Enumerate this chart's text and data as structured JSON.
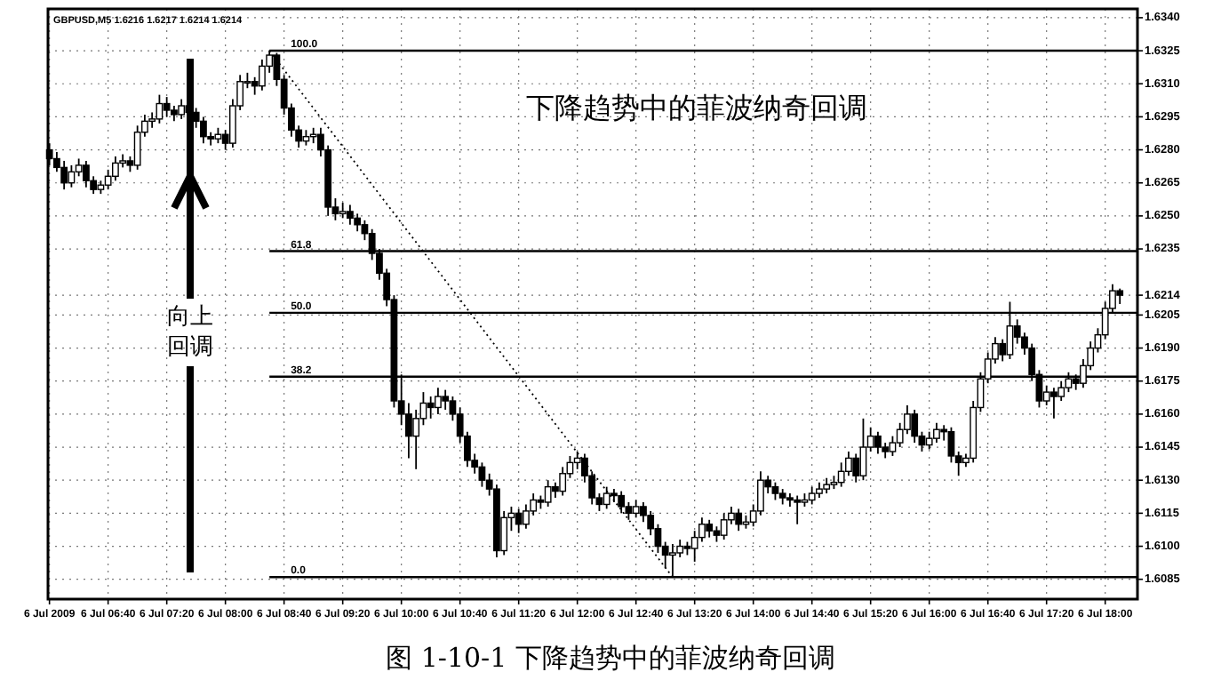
{
  "chart_data": {
    "type": "candlestick",
    "title": "图 1-10-1  下降趋势中的菲波纳奇回调",
    "subtitle": "GBPUSD,M5  1.6216 1.6217 1.6214 1.6214",
    "annotations": [
      "下降趋势中的菲波纳奇回调",
      "向上回调"
    ],
    "color": "#000000",
    "grid": true,
    "xlim": [
      "2009-07-06T05:59",
      "2009-07-06T18:22"
    ],
    "ylim": [
      1.6076,
      1.6344
    ],
    "xticks": [
      {
        "value": "2009-07-06T06:00",
        "label": "6 Jul 2009"
      },
      {
        "value": "2009-07-06T06:40",
        "label": "6 Jul 06:40"
      },
      {
        "value": "2009-07-06T07:20",
        "label": "6 Jul 07:20"
      },
      {
        "value": "2009-07-06T08:00",
        "label": "6 Jul 08:00"
      },
      {
        "value": "2009-07-06T08:40",
        "label": "6 Jul 08:40"
      },
      {
        "value": "2009-07-06T09:20",
        "label": "6 Jul 09:20"
      },
      {
        "value": "2009-07-06T10:00",
        "label": "6 Jul 10:00"
      },
      {
        "value": "2009-07-06T10:40",
        "label": "6 Jul 10:40"
      },
      {
        "value": "2009-07-06T11:20",
        "label": "6 Jul 11:20"
      },
      {
        "value": "2009-07-06T12:00",
        "label": "6 Jul 12:00"
      },
      {
        "value": "2009-07-06T12:40",
        "label": "6 Jul 12:40"
      },
      {
        "value": "2009-07-06T13:20",
        "label": "6 Jul 13:20"
      },
      {
        "value": "2009-07-06T14:00",
        "label": "6 Jul 14:00"
      },
      {
        "value": "2009-07-06T14:40",
        "label": "6 Jul 14:40"
      },
      {
        "value": "2009-07-06T15:20",
        "label": "6 Jul 15:20"
      },
      {
        "value": "2009-07-06T16:00",
        "label": "6 Jul 16:00"
      },
      {
        "value": "2009-07-06T16:40",
        "label": "6 Jul 16:40"
      },
      {
        "value": "2009-07-06T17:20",
        "label": "6 Jul 17:20"
      },
      {
        "value": "2009-07-06T18:00",
        "label": "6 Jul 18:00"
      }
    ],
    "yticks": [
      {
        "value": 1.634,
        "label": "1.6340"
      },
      1.6325,
      {
        "value": 1.631,
        "label": "1.6310"
      },
      1.6295,
      {
        "value": 1.628,
        "label": "1.6280"
      },
      1.6265,
      {
        "value": 1.625,
        "label": "1.6250"
      },
      1.6235,
      1.6214,
      1.6205,
      {
        "value": 1.619,
        "label": "1.6190"
      },
      1.6175,
      {
        "value": 1.616,
        "label": "1.6160"
      },
      1.6145,
      {
        "value": 1.613,
        "label": "1.6130"
      },
      1.6115,
      {
        "value": 1.61,
        "label": "1.6100"
      },
      1.6085
    ],
    "series": [
      {
        "type": "line",
        "x": [
          "2009-07-06T08:30",
          "2009-07-06T13:05"
        ],
        "values": [
          1.6325,
          1.6086
        ],
        "color": "#000000",
        "line_style": "dotted"
      },
      {
        "type": "line",
        "name": "100.0",
        "x": [
          "2009-07-06T08:30",
          "2009-07-06T18:22"
        ],
        "values": [
          1.6325,
          1.6325
        ],
        "color": "#000000",
        "line_style": "solid"
      },
      {
        "type": "line",
        "name": "61.8",
        "x": [
          "2009-07-06T08:30",
          "2009-07-06T18:22"
        ],
        "values": [
          1.6234,
          1.6234
        ],
        "color": "#000000",
        "line_style": "solid"
      },
      {
        "type": "line",
        "name": "50.0",
        "x": [
          "2009-07-06T08:30",
          "2009-07-06T18:22"
        ],
        "values": [
          1.6206,
          1.6206
        ],
        "color": "#000000",
        "line_style": "solid"
      },
      {
        "type": "line",
        "name": "38.2",
        "x": [
          "2009-07-06T08:30",
          "2009-07-06T18:22"
        ],
        "values": [
          1.6177,
          1.6177
        ],
        "color": "#000000",
        "line_style": "solid"
      },
      {
        "type": "line",
        "name": "0.0",
        "x": [
          "2009-07-06T08:30",
          "2009-07-06T18:22"
        ],
        "values": [
          1.6086,
          1.6086
        ],
        "color": "#000000",
        "line_style": "solid"
      }
    ],
    "x": [
      "2009-07-06T06:00",
      "2009-07-06T06:05",
      "2009-07-06T06:10",
      "2009-07-06T06:15",
      "2009-07-06T06:20",
      "2009-07-06T06:25",
      "2009-07-06T06:30",
      "2009-07-06T06:35",
      "2009-07-06T06:40",
      "2009-07-06T06:45",
      "2009-07-06T06:50",
      "2009-07-06T06:55",
      "2009-07-06T07:00",
      "2009-07-06T07:05",
      "2009-07-06T07:10",
      "2009-07-06T07:15",
      "2009-07-06T07:20",
      "2009-07-06T07:25",
      "2009-07-06T07:30",
      "2009-07-06T07:35",
      "2009-07-06T07:40",
      "2009-07-06T07:45",
      "2009-07-06T07:50",
      "2009-07-06T07:55",
      "2009-07-06T08:00",
      "2009-07-06T08:05",
      "2009-07-06T08:10",
      "2009-07-06T08:15",
      "2009-07-06T08:20",
      "2009-07-06T08:25",
      "2009-07-06T08:30",
      "2009-07-06T08:35",
      "2009-07-06T08:40",
      "2009-07-06T08:45",
      "2009-07-06T08:50",
      "2009-07-06T08:55",
      "2009-07-06T09:00",
      "2009-07-06T09:05",
      "2009-07-06T09:10",
      "2009-07-06T09:15",
      "2009-07-06T09:20",
      "2009-07-06T09:25",
      "2009-07-06T09:30",
      "2009-07-06T09:35",
      "2009-07-06T09:40",
      "2009-07-06T09:45",
      "2009-07-06T09:50",
      "2009-07-06T09:55",
      "2009-07-06T10:00",
      "2009-07-06T10:05",
      "2009-07-06T10:10",
      "2009-07-06T10:15",
      "2009-07-06T10:20",
      "2009-07-06T10:25",
      "2009-07-06T10:30",
      "2009-07-06T10:35",
      "2009-07-06T10:40",
      "2009-07-06T10:45",
      "2009-07-06T10:50",
      "2009-07-06T10:55",
      "2009-07-06T11:00",
      "2009-07-06T11:05",
      "2009-07-06T11:10",
      "2009-07-06T11:15",
      "2009-07-06T11:20",
      "2009-07-06T11:25",
      "2009-07-06T11:30",
      "2009-07-06T11:35",
      "2009-07-06T11:40",
      "2009-07-06T11:45",
      "2009-07-06T11:50",
      "2009-07-06T11:55",
      "2009-07-06T12:00",
      "2009-07-06T12:05",
      "2009-07-06T12:10",
      "2009-07-06T12:15",
      "2009-07-06T12:20",
      "2009-07-06T12:25",
      "2009-07-06T12:30",
      "2009-07-06T12:35",
      "2009-07-06T12:40",
      "2009-07-06T12:45",
      "2009-07-06T12:50",
      "2009-07-06T12:55",
      "2009-07-06T13:00",
      "2009-07-06T13:05",
      "2009-07-06T13:10",
      "2009-07-06T13:15",
      "2009-07-06T13:20",
      "2009-07-06T13:25",
      "2009-07-06T13:30",
      "2009-07-06T13:35",
      "2009-07-06T13:40",
      "2009-07-06T13:45",
      "2009-07-06T13:50",
      "2009-07-06T13:55",
      "2009-07-06T14:00",
      "2009-07-06T14:05",
      "2009-07-06T14:10",
      "2009-07-06T14:15",
      "2009-07-06T14:20",
      "2009-07-06T14:25",
      "2009-07-06T14:30",
      "2009-07-06T14:35",
      "2009-07-06T14:40",
      "2009-07-06T14:45",
      "2009-07-06T14:50",
      "2009-07-06T14:55",
      "2009-07-06T15:00",
      "2009-07-06T15:05",
      "2009-07-06T15:10",
      "2009-07-06T15:15",
      "2009-07-06T15:20",
      "2009-07-06T15:25",
      "2009-07-06T15:30",
      "2009-07-06T15:35",
      "2009-07-06T15:40",
      "2009-07-06T15:45",
      "2009-07-06T15:50",
      "2009-07-06T15:55",
      "2009-07-06T16:00",
      "2009-07-06T16:05",
      "2009-07-06T16:10",
      "2009-07-06T16:15",
      "2009-07-06T16:20",
      "2009-07-06T16:25",
      "2009-07-06T16:30",
      "2009-07-06T16:35",
      "2009-07-06T16:40",
      "2009-07-06T16:45",
      "2009-07-06T16:50",
      "2009-07-06T16:55",
      "2009-07-06T17:00",
      "2009-07-06T17:05",
      "2009-07-06T17:10",
      "2009-07-06T17:15",
      "2009-07-06T17:20",
      "2009-07-06T17:25",
      "2009-07-06T17:30",
      "2009-07-06T17:35",
      "2009-07-06T17:40",
      "2009-07-06T17:45",
      "2009-07-06T17:50",
      "2009-07-06T17:55",
      "2009-07-06T18:00",
      "2009-07-06T18:05",
      "2009-07-06T18:10"
    ],
    "ohlc": [
      [
        1.628,
        1.6283,
        1.6273,
        1.6276
      ],
      [
        1.6276,
        1.6279,
        1.627,
        1.6272
      ],
      [
        1.6272,
        1.6275,
        1.6262,
        1.6265
      ],
      [
        1.6265,
        1.6273,
        1.6263,
        1.627
      ],
      [
        1.627,
        1.6276,
        1.6268,
        1.6273
      ],
      [
        1.6273,
        1.6275,
        1.6263,
        1.6266
      ],
      [
        1.6266,
        1.6268,
        1.626,
        1.6262
      ],
      [
        1.6262,
        1.6266,
        1.626,
        1.6264
      ],
      [
        1.6264,
        1.6271,
        1.6262,
        1.6268
      ],
      [
        1.6268,
        1.6277,
        1.6266,
        1.6274
      ],
      [
        1.6274,
        1.6278,
        1.6272,
        1.6275
      ],
      [
        1.6275,
        1.6277,
        1.627,
        1.6273
      ],
      [
        1.6273,
        1.6291,
        1.6271,
        1.6288
      ],
      [
        1.6288,
        1.6296,
        1.6286,
        1.6293
      ],
      [
        1.6293,
        1.6297,
        1.629,
        1.6294
      ],
      [
        1.6294,
        1.6305,
        1.6292,
        1.6301
      ],
      [
        1.6301,
        1.6304,
        1.6295,
        1.6298
      ],
      [
        1.6298,
        1.63,
        1.6293,
        1.6296
      ],
      [
        1.6296,
        1.6303,
        1.6294,
        1.63
      ],
      [
        1.63,
        1.6302,
        1.6294,
        1.6297
      ],
      [
        1.6297,
        1.6299,
        1.629,
        1.6293
      ],
      [
        1.6293,
        1.6295,
        1.6283,
        1.6286
      ],
      [
        1.6286,
        1.6288,
        1.6282,
        1.6285
      ],
      [
        1.6285,
        1.629,
        1.6283,
        1.6287
      ],
      [
        1.6287,
        1.6289,
        1.628,
        1.6283
      ],
      [
        1.6283,
        1.6303,
        1.6281,
        1.63
      ],
      [
        1.63,
        1.6314,
        1.6298,
        1.6311
      ],
      [
        1.6311,
        1.6315,
        1.6308,
        1.6311
      ],
      [
        1.6311,
        1.6313,
        1.6305,
        1.6309
      ],
      [
        1.6309,
        1.6321,
        1.6307,
        1.6318
      ],
      [
        1.6318,
        1.6325,
        1.6315,
        1.6323
      ],
      [
        1.6323,
        1.6324,
        1.6309,
        1.6312
      ],
      [
        1.6312,
        1.6314,
        1.6296,
        1.6299
      ],
      [
        1.6299,
        1.6301,
        1.6286,
        1.6289
      ],
      [
        1.6289,
        1.6291,
        1.6281,
        1.6284
      ],
      [
        1.6284,
        1.6289,
        1.6282,
        1.6286
      ],
      [
        1.6286,
        1.629,
        1.6283,
        1.6287
      ],
      [
        1.6287,
        1.629,
        1.6277,
        1.628
      ],
      [
        1.628,
        1.6282,
        1.625,
        1.6254
      ],
      [
        1.6254,
        1.6258,
        1.6248,
        1.6251
      ],
      [
        1.6251,
        1.6256,
        1.6249,
        1.6252
      ],
      [
        1.6252,
        1.6255,
        1.6246,
        1.6249
      ],
      [
        1.6249,
        1.6251,
        1.6243,
        1.6246
      ],
      [
        1.6246,
        1.6248,
        1.6239,
        1.6242
      ],
      [
        1.6242,
        1.6244,
        1.623,
        1.6233
      ],
      [
        1.6233,
        1.6235,
        1.6221,
        1.6224
      ],
      [
        1.6224,
        1.6226,
        1.6209,
        1.6212
      ],
      [
        1.6212,
        1.6214,
        1.6163,
        1.6166
      ],
      [
        1.6166,
        1.6178,
        1.6155,
        1.616
      ],
      [
        1.616,
        1.6165,
        1.614,
        1.615
      ],
      [
        1.615,
        1.6162,
        1.6135,
        1.6158
      ],
      [
        1.6158,
        1.617,
        1.6155,
        1.6165
      ],
      [
        1.6165,
        1.6168,
        1.6158,
        1.6163
      ],
      [
        1.6163,
        1.6172,
        1.616,
        1.6168
      ],
      [
        1.6168,
        1.6171,
        1.6162,
        1.6166
      ],
      [
        1.6166,
        1.6168,
        1.6157,
        1.616
      ],
      [
        1.616,
        1.6163,
        1.6147,
        1.615
      ],
      [
        1.615,
        1.6152,
        1.6136,
        1.6139
      ],
      [
        1.6139,
        1.6142,
        1.6133,
        1.6136
      ],
      [
        1.6136,
        1.6138,
        1.6127,
        1.613
      ],
      [
        1.613,
        1.6133,
        1.6123,
        1.6126
      ],
      [
        1.6126,
        1.6128,
        1.6095,
        1.6098
      ],
      [
        1.6098,
        1.6116,
        1.6096,
        1.6113
      ],
      [
        1.6113,
        1.6118,
        1.6107,
        1.6115
      ],
      [
        1.6115,
        1.6117,
        1.6106,
        1.611
      ],
      [
        1.611,
        1.6119,
        1.6108,
        1.6116
      ],
      [
        1.6116,
        1.6124,
        1.6114,
        1.6121
      ],
      [
        1.6121,
        1.6123,
        1.6117,
        1.612
      ],
      [
        1.612,
        1.613,
        1.6118,
        1.6127
      ],
      [
        1.6127,
        1.6129,
        1.6122,
        1.6125
      ],
      [
        1.6125,
        1.6136,
        1.6123,
        1.6133
      ],
      [
        1.6133,
        1.6141,
        1.6131,
        1.6138
      ],
      [
        1.6138,
        1.6143,
        1.6135,
        1.614
      ],
      [
        1.614,
        1.6142,
        1.6129,
        1.6132
      ],
      [
        1.6132,
        1.6134,
        1.6119,
        1.6122
      ],
      [
        1.6122,
        1.6124,
        1.6116,
        1.6119
      ],
      [
        1.6119,
        1.6127,
        1.6117,
        1.6124
      ],
      [
        1.6124,
        1.6126,
        1.612,
        1.6123
      ],
      [
        1.6123,
        1.6125,
        1.6115,
        1.6118
      ],
      [
        1.6118,
        1.612,
        1.6112,
        1.6115
      ],
      [
        1.6115,
        1.6121,
        1.6113,
        1.6118
      ],
      [
        1.6118,
        1.612,
        1.6111,
        1.6114
      ],
      [
        1.6114,
        1.6116,
        1.6105,
        1.6108
      ],
      [
        1.6108,
        1.611,
        1.6097,
        1.61
      ],
      [
        1.61,
        1.6102,
        1.609,
        1.6096
      ],
      [
        1.6096,
        1.6101,
        1.6086,
        1.6097
      ],
      [
        1.6097,
        1.6103,
        1.6095,
        1.61
      ],
      [
        1.61,
        1.6102,
        1.6096,
        1.6099
      ],
      [
        1.6099,
        1.6107,
        1.6093,
        1.6104
      ],
      [
        1.6104,
        1.6113,
        1.6102,
        1.611
      ],
      [
        1.611,
        1.6112,
        1.6104,
        1.6107
      ],
      [
        1.6107,
        1.6109,
        1.6102,
        1.6105
      ],
      [
        1.6105,
        1.6115,
        1.6103,
        1.6112
      ],
      [
        1.6112,
        1.6118,
        1.611,
        1.6115
      ],
      [
        1.6115,
        1.6117,
        1.6107,
        1.611
      ],
      [
        1.611,
        1.6114,
        1.6108,
        1.6111
      ],
      [
        1.6111,
        1.6119,
        1.6109,
        1.6116
      ],
      [
        1.6116,
        1.6134,
        1.6114,
        1.613
      ],
      [
        1.613,
        1.6132,
        1.6124,
        1.6127
      ],
      [
        1.6127,
        1.6129,
        1.6121,
        1.6124
      ],
      [
        1.6124,
        1.6126,
        1.6119,
        1.6122
      ],
      [
        1.6122,
        1.6124,
        1.6118,
        1.6121
      ],
      [
        1.6121,
        1.6123,
        1.611,
        1.612
      ],
      [
        1.612,
        1.6124,
        1.6118,
        1.6121
      ],
      [
        1.6121,
        1.6127,
        1.6119,
        1.6124
      ],
      [
        1.6124,
        1.6129,
        1.6122,
        1.6126
      ],
      [
        1.6126,
        1.6131,
        1.6124,
        1.6128
      ],
      [
        1.6128,
        1.6132,
        1.6126,
        1.6129
      ],
      [
        1.6129,
        1.6138,
        1.6127,
        1.6134
      ],
      [
        1.6134,
        1.6143,
        1.6132,
        1.614
      ],
      [
        1.614,
        1.6142,
        1.6129,
        1.6132
      ],
      [
        1.6132,
        1.6158,
        1.613,
        1.6145
      ],
      [
        1.6145,
        1.6154,
        1.6143,
        1.615
      ],
      [
        1.615,
        1.6152,
        1.6142,
        1.6145
      ],
      [
        1.6145,
        1.6147,
        1.614,
        1.6143
      ],
      [
        1.6143,
        1.615,
        1.6141,
        1.6147
      ],
      [
        1.6147,
        1.6156,
        1.6145,
        1.6153
      ],
      [
        1.6153,
        1.6164,
        1.6151,
        1.616
      ],
      [
        1.616,
        1.6162,
        1.6147,
        1.615
      ],
      [
        1.615,
        1.6152,
        1.6143,
        1.6146
      ],
      [
        1.6146,
        1.6152,
        1.6144,
        1.6149
      ],
      [
        1.6149,
        1.6156,
        1.6147,
        1.6153
      ],
      [
        1.6153,
        1.6155,
        1.6148,
        1.6152
      ],
      [
        1.6152,
        1.6154,
        1.6138,
        1.6141
      ],
      [
        1.6141,
        1.6143,
        1.6132,
        1.6138
      ],
      [
        1.6138,
        1.6142,
        1.6136,
        1.614
      ],
      [
        1.614,
        1.6166,
        1.6138,
        1.6163
      ],
      [
        1.6163,
        1.6179,
        1.6161,
        1.6176
      ],
      [
        1.6176,
        1.6188,
        1.6174,
        1.6185
      ],
      [
        1.6185,
        1.6195,
        1.6183,
        1.6192
      ],
      [
        1.6192,
        1.6194,
        1.6184,
        1.6187
      ],
      [
        1.6187,
        1.6211,
        1.6185,
        1.62
      ],
      [
        1.62,
        1.6203,
        1.6192,
        1.6195
      ],
      [
        1.6195,
        1.6197,
        1.6187,
        1.619
      ],
      [
        1.619,
        1.6192,
        1.6175,
        1.6178
      ],
      [
        1.6178,
        1.618,
        1.6163,
        1.6166
      ],
      [
        1.6166,
        1.6173,
        1.6164,
        1.617
      ],
      [
        1.617,
        1.6172,
        1.6158,
        1.6168
      ],
      [
        1.6168,
        1.6175,
        1.6166,
        1.6172
      ],
      [
        1.6172,
        1.6179,
        1.617,
        1.6176
      ],
      [
        1.6176,
        1.6178,
        1.6171,
        1.6174
      ],
      [
        1.6174,
        1.6185,
        1.6172,
        1.6182
      ],
      [
        1.6182,
        1.6193,
        1.618,
        1.619
      ],
      [
        1.619,
        1.6199,
        1.6188,
        1.6196
      ],
      [
        1.6196,
        1.6211,
        1.6194,
        1.6208
      ],
      [
        1.6208,
        1.6219,
        1.6206,
        1.6216
      ],
      [
        1.6216,
        1.6217,
        1.621,
        1.6214
      ]
    ]
  }
}
